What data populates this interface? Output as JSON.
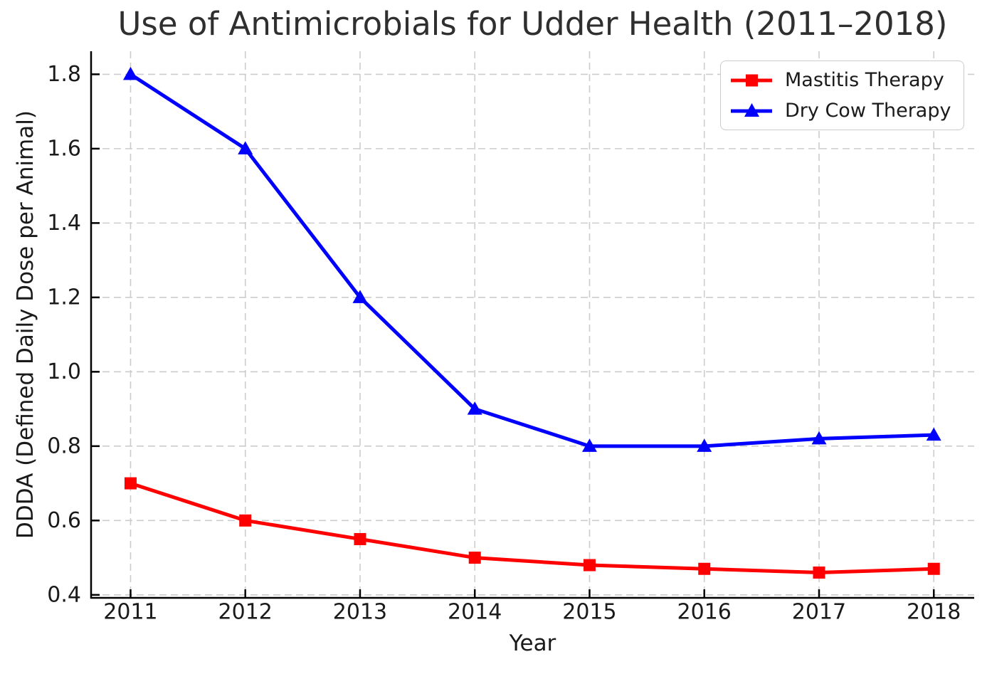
{
  "chart_data": {
    "type": "line",
    "title": "Use of Antimicrobials for Udder Health (2011–2018)",
    "xlabel": "Year",
    "ylabel": "DDDA (Defined Daily Dose per Animal)",
    "x": [
      2011,
      2012,
      2013,
      2014,
      2015,
      2016,
      2017,
      2018
    ],
    "series": [
      {
        "name": "Mastitis Therapy",
        "color": "#ff0000",
        "marker": "square",
        "values": [
          0.7,
          0.6,
          0.55,
          0.5,
          0.48,
          0.47,
          0.46,
          0.47
        ]
      },
      {
        "name": "Dry Cow Therapy",
        "color": "#0000ff",
        "marker": "triangle",
        "values": [
          1.8,
          1.6,
          1.2,
          0.9,
          0.8,
          0.8,
          0.82,
          0.83
        ]
      }
    ],
    "xticks": [
      2011,
      2012,
      2013,
      2014,
      2015,
      2016,
      2017,
      2018
    ],
    "yticks": [
      0.4,
      0.6,
      0.8,
      1.0,
      1.2,
      1.4,
      1.6,
      1.8
    ],
    "xlim": [
      2010.656,
      2018.352
    ],
    "ylim": [
      0.392,
      1.862
    ],
    "grid": true,
    "legend": {
      "position": "upper right",
      "entries": [
        "Mastitis Therapy",
        "Dry Cow Therapy"
      ]
    },
    "colors": {
      "grid": "#cccccc",
      "axis": "#000000",
      "title_text": "#2f2f2f",
      "text": "#1a1a1a",
      "legend_border": "#cccccc",
      "background": "#ffffff"
    }
  }
}
